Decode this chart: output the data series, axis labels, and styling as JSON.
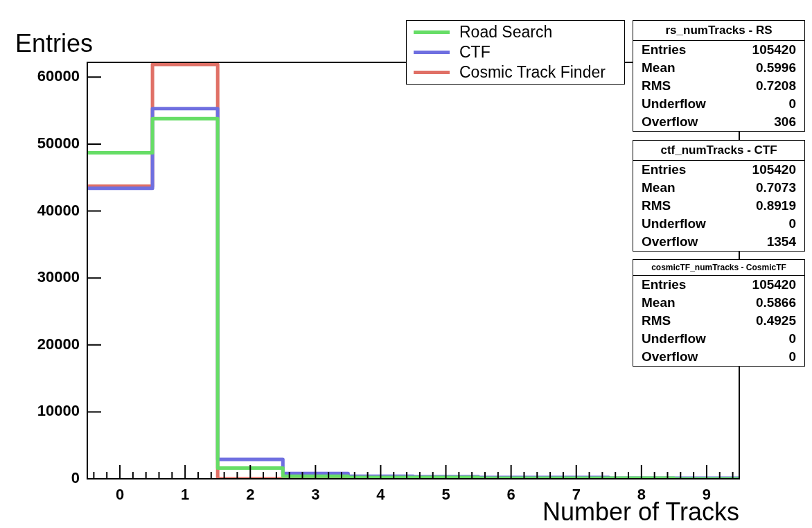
{
  "chart_data": [
    {
      "type": "histogram",
      "xlabel": "Number of Tracks",
      "ylabel": "Entries",
      "bins": [
        -0.5,
        0.5,
        1.5,
        2.5,
        3.5,
        4.5,
        5.5,
        6.5,
        7.5,
        8.5,
        9.5
      ],
      "series": [
        {
          "name": "Road Search",
          "color": "#66dd66",
          "values": [
            48700,
            53800,
            1600,
            400,
            200,
            200,
            100,
            100,
            100,
            0
          ]
        },
        {
          "name": "CTF",
          "color": "#6f6fe0",
          "values": [
            43400,
            55300,
            2900,
            800,
            400,
            300,
            200,
            200,
            100,
            100
          ]
        },
        {
          "name": "Cosmic Track Finder",
          "color": "#e07066",
          "values": [
            43700,
            61900,
            0,
            0,
            0,
            0,
            0,
            0,
            0,
            0
          ]
        }
      ],
      "xlim": [
        -0.5,
        9.5
      ],
      "ylim": [
        0,
        62200
      ],
      "xticks": [
        {
          "value": -0.4,
          "label": null
        },
        {
          "value": -0.2,
          "label": null
        },
        0,
        {
          "value": 0.2,
          "label": null
        },
        {
          "value": 0.4,
          "label": null
        },
        {
          "value": 0.6,
          "label": null
        },
        {
          "value": 0.8,
          "label": null
        },
        1,
        {
          "value": 1.2,
          "label": null
        },
        {
          "value": 1.4,
          "label": null
        },
        {
          "value": 1.6,
          "label": null
        },
        {
          "value": 1.8,
          "label": null
        },
        2,
        {
          "value": 2.2,
          "label": null
        },
        {
          "value": 2.4,
          "label": null
        },
        {
          "value": 2.6,
          "label": null
        },
        {
          "value": 2.8,
          "label": null
        },
        3,
        {
          "value": 3.2,
          "label": null
        },
        {
          "value": 3.4,
          "label": null
        },
        {
          "value": 3.6,
          "label": null
        },
        {
          "value": 3.8,
          "label": null
        },
        4,
        {
          "value": 4.2,
          "label": null
        },
        {
          "value": 4.4,
          "label": null
        },
        {
          "value": 4.6,
          "label": null
        },
        {
          "value": 4.8,
          "label": null
        },
        5,
        {
          "value": 5.2,
          "label": null
        },
        {
          "value": 5.4,
          "label": null
        },
        {
          "value": 5.6,
          "label": null
        },
        {
          "value": 5.8,
          "label": null
        },
        6,
        {
          "value": 6.2,
          "label": null
        },
        {
          "value": 6.4,
          "label": null
        },
        {
          "value": 6.6,
          "label": null
        },
        {
          "value": 6.8,
          "label": null
        },
        7,
        {
          "value": 7.2,
          "label": null
        },
        {
          "value": 7.4,
          "label": null
        },
        {
          "value": 7.6,
          "label": null
        },
        {
          "value": 7.8,
          "label": null
        },
        8,
        {
          "value": 8.2,
          "label": null
        },
        {
          "value": 8.4,
          "label": null
        },
        {
          "value": 8.6,
          "label": null
        },
        {
          "value": 8.8,
          "label": null
        },
        9,
        {
          "value": 9.2,
          "label": null
        },
        {
          "value": 9.4,
          "label": null
        }
      ],
      "yticks": [
        0,
        10000,
        20000,
        30000,
        40000,
        50000,
        60000
      ],
      "legend": "top right"
    },
    {
      "type": "other",
      "title": "rs_numTracks - RS",
      "annotations": [
        "Entries",
        "105420",
        "Mean",
        "0.5996",
        "RMS",
        "0.7208",
        "Underflow",
        "0",
        "Overflow",
        "306"
      ]
    },
    {
      "type": "other",
      "title": "ctf_numTracks - CTF",
      "annotations": [
        "Entries",
        "105420",
        "Mean",
        "0.7073",
        "RMS",
        "0.8919",
        "Underflow",
        "0",
        "Overflow",
        "1354"
      ]
    },
    {
      "type": "other",
      "title": "cosmicTF_numTracks - CosmicTF",
      "annotations": [
        "Entries",
        "105420",
        "Mean",
        "0.5866",
        "RMS",
        "0.4925",
        "Underflow",
        "0",
        "Overflow",
        "0"
      ]
    }
  ]
}
